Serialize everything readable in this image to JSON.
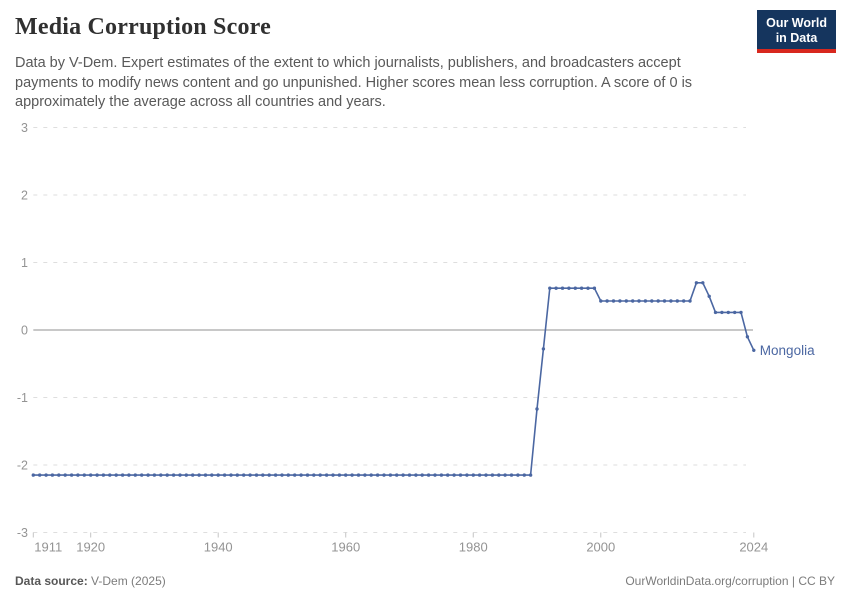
{
  "header": {
    "title": "Media Corruption Score",
    "subtitle": "Data by V-Dem. Expert estimates of the extent to which journalists, publishers, and broadcasters accept payments to modify news content and go unpunished. Higher scores mean less corruption. A score of 0 is approximately the average across all countries and years.",
    "logo": {
      "line1": "Our World",
      "line2": "in Data",
      "bg_color": "#15355e",
      "accent_color": "#d8281e"
    }
  },
  "chart_data": {
    "type": "line",
    "title": "Media Corruption Score",
    "xlabel": "",
    "ylabel": "",
    "x_ticks": [
      1911,
      1920,
      1940,
      1960,
      1980,
      2000,
      2024
    ],
    "y_ticks": [
      3,
      2,
      1,
      0,
      -1,
      -2,
      -3
    ],
    "x_range": [
      1911,
      2024
    ],
    "y_range": [
      -3,
      3
    ],
    "grid": "dashed horizontal, solid zero line",
    "legend": "end-of-line entity label",
    "series": [
      {
        "name": "Mongolia",
        "points": [
          [
            1911,
            -2.15
          ],
          [
            1912,
            -2.15
          ],
          [
            1913,
            -2.15
          ],
          [
            1914,
            -2.15
          ],
          [
            1915,
            -2.15
          ],
          [
            1916,
            -2.15
          ],
          [
            1917,
            -2.15
          ],
          [
            1918,
            -2.15
          ],
          [
            1919,
            -2.15
          ],
          [
            1920,
            -2.15
          ],
          [
            1921,
            -2.15
          ],
          [
            1922,
            -2.15
          ],
          [
            1923,
            -2.15
          ],
          [
            1924,
            -2.15
          ],
          [
            1925,
            -2.15
          ],
          [
            1926,
            -2.15
          ],
          [
            1927,
            -2.15
          ],
          [
            1928,
            -2.15
          ],
          [
            1929,
            -2.15
          ],
          [
            1930,
            -2.15
          ],
          [
            1931,
            -2.15
          ],
          [
            1932,
            -2.15
          ],
          [
            1933,
            -2.15
          ],
          [
            1934,
            -2.15
          ],
          [
            1935,
            -2.15
          ],
          [
            1936,
            -2.15
          ],
          [
            1937,
            -2.15
          ],
          [
            1938,
            -2.15
          ],
          [
            1939,
            -2.15
          ],
          [
            1940,
            -2.15
          ],
          [
            1941,
            -2.15
          ],
          [
            1942,
            -2.15
          ],
          [
            1943,
            -2.15
          ],
          [
            1944,
            -2.15
          ],
          [
            1945,
            -2.15
          ],
          [
            1946,
            -2.15
          ],
          [
            1947,
            -2.15
          ],
          [
            1948,
            -2.15
          ],
          [
            1949,
            -2.15
          ],
          [
            1950,
            -2.15
          ],
          [
            1951,
            -2.15
          ],
          [
            1952,
            -2.15
          ],
          [
            1953,
            -2.15
          ],
          [
            1954,
            -2.15
          ],
          [
            1955,
            -2.15
          ],
          [
            1956,
            -2.15
          ],
          [
            1957,
            -2.15
          ],
          [
            1958,
            -2.15
          ],
          [
            1959,
            -2.15
          ],
          [
            1960,
            -2.15
          ],
          [
            1961,
            -2.15
          ],
          [
            1962,
            -2.15
          ],
          [
            1963,
            -2.15
          ],
          [
            1964,
            -2.15
          ],
          [
            1965,
            -2.15
          ],
          [
            1966,
            -2.15
          ],
          [
            1967,
            -2.15
          ],
          [
            1968,
            -2.15
          ],
          [
            1969,
            -2.15
          ],
          [
            1970,
            -2.15
          ],
          [
            1971,
            -2.15
          ],
          [
            1972,
            -2.15
          ],
          [
            1973,
            -2.15
          ],
          [
            1974,
            -2.15
          ],
          [
            1975,
            -2.15
          ],
          [
            1976,
            -2.15
          ],
          [
            1977,
            -2.15
          ],
          [
            1978,
            -2.15
          ],
          [
            1979,
            -2.15
          ],
          [
            1980,
            -2.15
          ],
          [
            1981,
            -2.15
          ],
          [
            1982,
            -2.15
          ],
          [
            1983,
            -2.15
          ],
          [
            1984,
            -2.15
          ],
          [
            1985,
            -2.15
          ],
          [
            1986,
            -2.15
          ],
          [
            1987,
            -2.15
          ],
          [
            1988,
            -2.15
          ],
          [
            1989,
            -2.15
          ],
          [
            1990,
            -1.17
          ],
          [
            1991,
            -0.28
          ],
          [
            1992,
            0.62
          ],
          [
            1993,
            0.62
          ],
          [
            1994,
            0.62
          ],
          [
            1995,
            0.62
          ],
          [
            1996,
            0.62
          ],
          [
            1997,
            0.62
          ],
          [
            1998,
            0.62
          ],
          [
            1999,
            0.62
          ],
          [
            2000,
            0.43
          ],
          [
            2001,
            0.43
          ],
          [
            2002,
            0.43
          ],
          [
            2003,
            0.43
          ],
          [
            2004,
            0.43
          ],
          [
            2005,
            0.43
          ],
          [
            2006,
            0.43
          ],
          [
            2007,
            0.43
          ],
          [
            2008,
            0.43
          ],
          [
            2009,
            0.43
          ],
          [
            2010,
            0.43
          ],
          [
            2011,
            0.43
          ],
          [
            2012,
            0.43
          ],
          [
            2013,
            0.43
          ],
          [
            2014,
            0.43
          ],
          [
            2015,
            0.7
          ],
          [
            2016,
            0.7
          ],
          [
            2017,
            0.5
          ],
          [
            2018,
            0.26
          ],
          [
            2019,
            0.26
          ],
          [
            2020,
            0.26
          ],
          [
            2021,
            0.26
          ],
          [
            2022,
            0.26
          ],
          [
            2023,
            -0.1
          ],
          [
            2024,
            -0.3
          ]
        ]
      }
    ],
    "colors": {
      "line": "#4b67a2",
      "grid": "#dedede",
      "zero_line": "#a8a8a8",
      "tick_label": "#949494",
      "tick_mark": "#c4c4c4"
    }
  },
  "footer": {
    "source_label": "Data source:",
    "source_value": "V-Dem (2025)",
    "right_text": "OurWorldinData.org/corruption | CC BY"
  }
}
